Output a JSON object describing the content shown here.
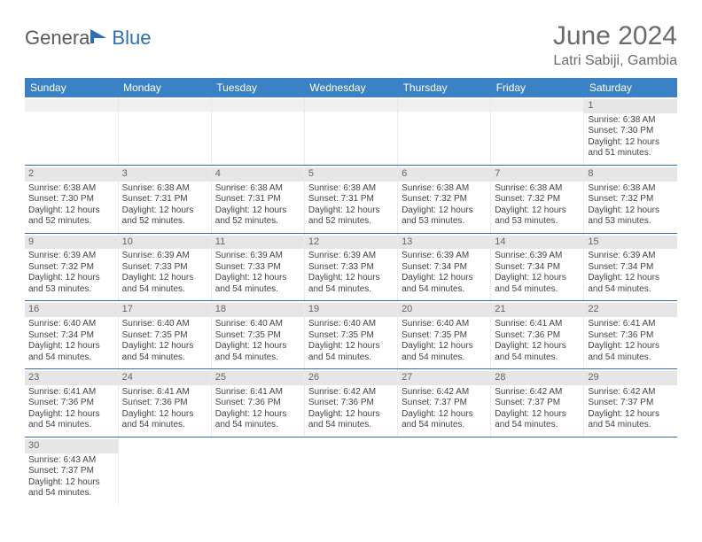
{
  "logo": {
    "part_a": "Genera",
    "part_b": "Blue"
  },
  "title": "June 2024",
  "location": "Latri Sabiji, Gambia",
  "colors": {
    "header_row_bg": "#3a82c4",
    "header_row_text": "#ffffff",
    "cell_border_bottom": "#2a6fb5",
    "daynum_bg": "#e6e6e6",
    "title_color": "#6b6b6b",
    "logo_blue": "#2a6fb5",
    "logo_gray": "#5a5a5a"
  },
  "weekdays": [
    "Sunday",
    "Monday",
    "Tuesday",
    "Wednesday",
    "Thursday",
    "Friday",
    "Saturday"
  ],
  "blank_leading": 6,
  "days": [
    {
      "n": 1,
      "sunrise": "6:38 AM",
      "sunset": "7:30 PM",
      "daylight": "12 hours and 51 minutes."
    },
    {
      "n": 2,
      "sunrise": "6:38 AM",
      "sunset": "7:30 PM",
      "daylight": "12 hours and 52 minutes."
    },
    {
      "n": 3,
      "sunrise": "6:38 AM",
      "sunset": "7:31 PM",
      "daylight": "12 hours and 52 minutes."
    },
    {
      "n": 4,
      "sunrise": "6:38 AM",
      "sunset": "7:31 PM",
      "daylight": "12 hours and 52 minutes."
    },
    {
      "n": 5,
      "sunrise": "6:38 AM",
      "sunset": "7:31 PM",
      "daylight": "12 hours and 52 minutes."
    },
    {
      "n": 6,
      "sunrise": "6:38 AM",
      "sunset": "7:32 PM",
      "daylight": "12 hours and 53 minutes."
    },
    {
      "n": 7,
      "sunrise": "6:38 AM",
      "sunset": "7:32 PM",
      "daylight": "12 hours and 53 minutes."
    },
    {
      "n": 8,
      "sunrise": "6:38 AM",
      "sunset": "7:32 PM",
      "daylight": "12 hours and 53 minutes."
    },
    {
      "n": 9,
      "sunrise": "6:39 AM",
      "sunset": "7:32 PM",
      "daylight": "12 hours and 53 minutes."
    },
    {
      "n": 10,
      "sunrise": "6:39 AM",
      "sunset": "7:33 PM",
      "daylight": "12 hours and 54 minutes."
    },
    {
      "n": 11,
      "sunrise": "6:39 AM",
      "sunset": "7:33 PM",
      "daylight": "12 hours and 54 minutes."
    },
    {
      "n": 12,
      "sunrise": "6:39 AM",
      "sunset": "7:33 PM",
      "daylight": "12 hours and 54 minutes."
    },
    {
      "n": 13,
      "sunrise": "6:39 AM",
      "sunset": "7:34 PM",
      "daylight": "12 hours and 54 minutes."
    },
    {
      "n": 14,
      "sunrise": "6:39 AM",
      "sunset": "7:34 PM",
      "daylight": "12 hours and 54 minutes."
    },
    {
      "n": 15,
      "sunrise": "6:39 AM",
      "sunset": "7:34 PM",
      "daylight": "12 hours and 54 minutes."
    },
    {
      "n": 16,
      "sunrise": "6:40 AM",
      "sunset": "7:34 PM",
      "daylight": "12 hours and 54 minutes."
    },
    {
      "n": 17,
      "sunrise": "6:40 AM",
      "sunset": "7:35 PM",
      "daylight": "12 hours and 54 minutes."
    },
    {
      "n": 18,
      "sunrise": "6:40 AM",
      "sunset": "7:35 PM",
      "daylight": "12 hours and 54 minutes."
    },
    {
      "n": 19,
      "sunrise": "6:40 AM",
      "sunset": "7:35 PM",
      "daylight": "12 hours and 54 minutes."
    },
    {
      "n": 20,
      "sunrise": "6:40 AM",
      "sunset": "7:35 PM",
      "daylight": "12 hours and 54 minutes."
    },
    {
      "n": 21,
      "sunrise": "6:41 AM",
      "sunset": "7:36 PM",
      "daylight": "12 hours and 54 minutes."
    },
    {
      "n": 22,
      "sunrise": "6:41 AM",
      "sunset": "7:36 PM",
      "daylight": "12 hours and 54 minutes."
    },
    {
      "n": 23,
      "sunrise": "6:41 AM",
      "sunset": "7:36 PM",
      "daylight": "12 hours and 54 minutes."
    },
    {
      "n": 24,
      "sunrise": "6:41 AM",
      "sunset": "7:36 PM",
      "daylight": "12 hours and 54 minutes."
    },
    {
      "n": 25,
      "sunrise": "6:41 AM",
      "sunset": "7:36 PM",
      "daylight": "12 hours and 54 minutes."
    },
    {
      "n": 26,
      "sunrise": "6:42 AM",
      "sunset": "7:36 PM",
      "daylight": "12 hours and 54 minutes."
    },
    {
      "n": 27,
      "sunrise": "6:42 AM",
      "sunset": "7:37 PM",
      "daylight": "12 hours and 54 minutes."
    },
    {
      "n": 28,
      "sunrise": "6:42 AM",
      "sunset": "7:37 PM",
      "daylight": "12 hours and 54 minutes."
    },
    {
      "n": 29,
      "sunrise": "6:42 AM",
      "sunset": "7:37 PM",
      "daylight": "12 hours and 54 minutes."
    },
    {
      "n": 30,
      "sunrise": "6:43 AM",
      "sunset": "7:37 PM",
      "daylight": "12 hours and 54 minutes."
    }
  ],
  "labels": {
    "sunrise_prefix": "Sunrise: ",
    "sunset_prefix": "Sunset: ",
    "daylight_prefix": "Daylight: "
  }
}
